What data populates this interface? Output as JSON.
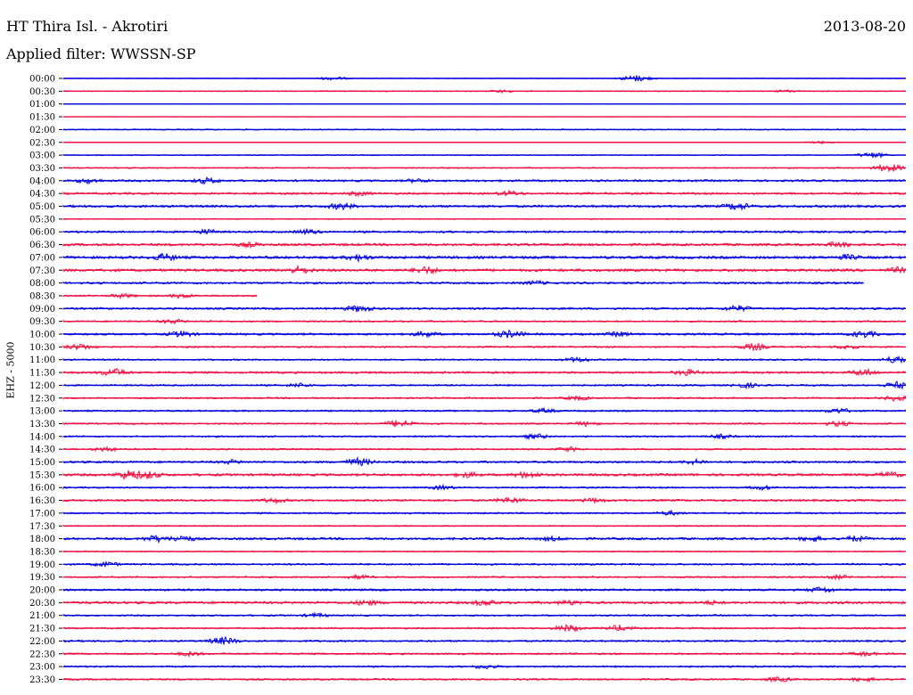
{
  "header": {
    "station": "HT Thira Isl. - Akrotiri",
    "date": "2013-08-20",
    "filter": "Applied filter: WWSSN-SP"
  },
  "chart_data": {
    "type": "line",
    "title": "HT Thira Isl. - Akrotiri",
    "ylabel": "EHZ - 5000",
    "colors": [
      "#0000dd",
      "#ee1144"
    ],
    "rows": [
      {
        "label": "00:00",
        "amp": 0.6,
        "bursts": [
          [
            0.32,
            2.2
          ],
          [
            0.68,
            4.0
          ]
        ],
        "end": 1.0
      },
      {
        "label": "00:30",
        "amp": 1.2,
        "bursts": [
          [
            0.52,
            1.8
          ],
          [
            0.86,
            1.8
          ]
        ],
        "end": 1.0
      },
      {
        "label": "01:00",
        "amp": 0.4,
        "bursts": [],
        "end": 1.0
      },
      {
        "label": "01:30",
        "amp": 0.4,
        "bursts": [],
        "end": 1.0
      },
      {
        "label": "02:00",
        "amp": 1.4,
        "bursts": [],
        "end": 1.0
      },
      {
        "label": "02:30",
        "amp": 0.5,
        "bursts": [
          [
            0.9,
            1.6
          ]
        ],
        "end": 1.0
      },
      {
        "label": "03:00",
        "amp": 1.2,
        "bursts": [
          [
            0.96,
            3.5
          ]
        ],
        "end": 1.0
      },
      {
        "label": "03:30",
        "amp": 1.5,
        "bursts": [
          [
            0.98,
            5.0
          ]
        ],
        "end": 1.0
      },
      {
        "label": "04:00",
        "amp": 2.5,
        "bursts": [
          [
            0.03,
            3.5
          ],
          [
            0.17,
            4.0
          ],
          [
            0.42,
            3.0
          ]
        ],
        "end": 1.0
      },
      {
        "label": "04:30",
        "amp": 2.5,
        "bursts": [
          [
            0.35,
            3.2
          ],
          [
            0.53,
            3.5
          ]
        ],
        "end": 1.0
      },
      {
        "label": "05:00",
        "amp": 2.8,
        "bursts": [
          [
            0.33,
            4.5
          ],
          [
            0.8,
            5.0
          ]
        ],
        "end": 1.0
      },
      {
        "label": "05:30",
        "amp": 1.2,
        "bursts": [],
        "end": 1.0
      },
      {
        "label": "06:00",
        "amp": 2.5,
        "bursts": [
          [
            0.17,
            3.5
          ],
          [
            0.29,
            3.5
          ]
        ],
        "end": 1.0
      },
      {
        "label": "06:30",
        "amp": 3.0,
        "bursts": [
          [
            0.22,
            3.5
          ],
          [
            0.92,
            4.0
          ]
        ],
        "end": 1.0
      },
      {
        "label": "07:00",
        "amp": 3.2,
        "bursts": [
          [
            0.12,
            5.0
          ],
          [
            0.35,
            4.5
          ],
          [
            0.93,
            4.0
          ]
        ],
        "end": 1.0
      },
      {
        "label": "07:30",
        "amp": 3.2,
        "bursts": [
          [
            0.28,
            5.0
          ],
          [
            0.43,
            5.0
          ],
          [
            0.99,
            4.0
          ]
        ],
        "end": 1.0
      },
      {
        "label": "08:00",
        "amp": 2.5,
        "bursts": [
          [
            0.56,
            3.0
          ]
        ],
        "end": 0.95
      },
      {
        "label": "08:30",
        "amp": 2.0,
        "bursts": [
          [
            0.07,
            3.0
          ],
          [
            0.14,
            3.0
          ]
        ],
        "end": 0.23
      },
      {
        "label": "09:00",
        "amp": 2.5,
        "bursts": [
          [
            0.35,
            4.5
          ],
          [
            0.8,
            4.0
          ]
        ],
        "end": 1.0
      },
      {
        "label": "09:30",
        "amp": 2.0,
        "bursts": [
          [
            0.13,
            3.0
          ]
        ],
        "end": 1.0
      },
      {
        "label": "10:00",
        "amp": 2.5,
        "bursts": [
          [
            0.14,
            4.0
          ],
          [
            0.43,
            3.8
          ],
          [
            0.53,
            5.0
          ],
          [
            0.66,
            3.5
          ],
          [
            0.95,
            4.5
          ]
        ],
        "end": 1.0
      },
      {
        "label": "10:30",
        "amp": 2.0,
        "bursts": [
          [
            0.02,
            4.0
          ],
          [
            0.82,
            4.5
          ],
          [
            0.93,
            3.0
          ]
        ],
        "end": 1.0
      },
      {
        "label": "11:00",
        "amp": 2.0,
        "bursts": [
          [
            0.61,
            3.5
          ],
          [
            0.99,
            5.0
          ]
        ],
        "end": 1.0
      },
      {
        "label": "11:30",
        "amp": 2.5,
        "bursts": [
          [
            0.06,
            5.0
          ],
          [
            0.74,
            4.0
          ],
          [
            0.95,
            4.5
          ]
        ],
        "end": 1.0
      },
      {
        "label": "12:00",
        "amp": 2.0,
        "bursts": [
          [
            0.28,
            3.0
          ],
          [
            0.81,
            3.5
          ],
          [
            0.99,
            4.5
          ]
        ],
        "end": 1.0
      },
      {
        "label": "12:30",
        "amp": 2.0,
        "bursts": [
          [
            0.61,
            3.0
          ],
          [
            0.99,
            4.0
          ]
        ],
        "end": 1.0
      },
      {
        "label": "13:00",
        "amp": 2.0,
        "bursts": [
          [
            0.57,
            3.0
          ],
          [
            0.92,
            3.5
          ]
        ],
        "end": 1.0
      },
      {
        "label": "13:30",
        "amp": 2.0,
        "bursts": [
          [
            0.4,
            5.0
          ],
          [
            0.62,
            3.0
          ],
          [
            0.92,
            3.5
          ]
        ],
        "end": 1.0
      },
      {
        "label": "14:00",
        "amp": 2.0,
        "bursts": [
          [
            0.56,
            3.5
          ],
          [
            0.78,
            3.0
          ]
        ],
        "end": 1.0
      },
      {
        "label": "14:30",
        "amp": 2.0,
        "bursts": [
          [
            0.05,
            3.0
          ],
          [
            0.6,
            3.0
          ]
        ],
        "end": 1.0
      },
      {
        "label": "15:00",
        "amp": 2.5,
        "bursts": [
          [
            0.2,
            3.0
          ],
          [
            0.35,
            5.0
          ],
          [
            0.75,
            3.5
          ]
        ],
        "end": 1.0
      },
      {
        "label": "15:30",
        "amp": 3.0,
        "bursts": [
          [
            0.08,
            6.5
          ],
          [
            0.1,
            5.0
          ],
          [
            0.48,
            4.0
          ],
          [
            0.55,
            4.5
          ],
          [
            0.98,
            4.0
          ]
        ],
        "end": 1.0
      },
      {
        "label": "16:00",
        "amp": 2.0,
        "bursts": [
          [
            0.45,
            3.0
          ],
          [
            0.83,
            3.0
          ]
        ],
        "end": 1.0
      },
      {
        "label": "16:30",
        "amp": 2.5,
        "bursts": [
          [
            0.25,
            3.5
          ],
          [
            0.53,
            4.0
          ],
          [
            0.63,
            3.5
          ]
        ],
        "end": 1.0
      },
      {
        "label": "17:00",
        "amp": 2.0,
        "bursts": [
          [
            0.72,
            3.0
          ]
        ],
        "end": 1.0
      },
      {
        "label": "17:30",
        "amp": 1.5,
        "bursts": [],
        "end": 1.0
      },
      {
        "label": "18:00",
        "amp": 2.8,
        "bursts": [
          [
            0.11,
            4.5
          ],
          [
            0.14,
            4.5
          ],
          [
            0.58,
            3.5
          ],
          [
            0.89,
            4.0
          ],
          [
            0.94,
            4.0
          ]
        ],
        "end": 1.0
      },
      {
        "label": "18:30",
        "amp": 1.5,
        "bursts": [],
        "end": 1.0
      },
      {
        "label": "19:00",
        "amp": 2.2,
        "bursts": [
          [
            0.05,
            3.5
          ]
        ],
        "end": 1.0
      },
      {
        "label": "19:30",
        "amp": 2.0,
        "bursts": [
          [
            0.35,
            3.0
          ],
          [
            0.92,
            3.0
          ]
        ],
        "end": 1.0
      },
      {
        "label": "20:00",
        "amp": 2.5,
        "bursts": [
          [
            0.9,
            4.0
          ]
        ],
        "end": 1.0
      },
      {
        "label": "20:30",
        "amp": 3.0,
        "bursts": [
          [
            0.36,
            4.0
          ],
          [
            0.5,
            4.0
          ],
          [
            0.6,
            3.5
          ],
          [
            0.77,
            3.0
          ]
        ],
        "end": 1.0
      },
      {
        "label": "21:00",
        "amp": 2.0,
        "bursts": [
          [
            0.3,
            3.0
          ]
        ],
        "end": 1.0
      },
      {
        "label": "21:30",
        "amp": 2.0,
        "bursts": [
          [
            0.6,
            4.5
          ],
          [
            0.66,
            4.0
          ]
        ],
        "end": 1.0
      },
      {
        "label": "22:00",
        "amp": 2.2,
        "bursts": [
          [
            0.19,
            5.0
          ]
        ],
        "end": 1.0
      },
      {
        "label": "22:30",
        "amp": 2.2,
        "bursts": [
          [
            0.15,
            3.0
          ],
          [
            0.95,
            3.0
          ]
        ],
        "end": 1.0
      },
      {
        "label": "23:00",
        "amp": 2.0,
        "bursts": [
          [
            0.5,
            3.0
          ]
        ],
        "end": 1.0
      },
      {
        "label": "23:30",
        "amp": 2.2,
        "bursts": [
          [
            0.85,
            3.5
          ],
          [
            0.95,
            3.0
          ]
        ],
        "end": 1.0
      }
    ]
  }
}
